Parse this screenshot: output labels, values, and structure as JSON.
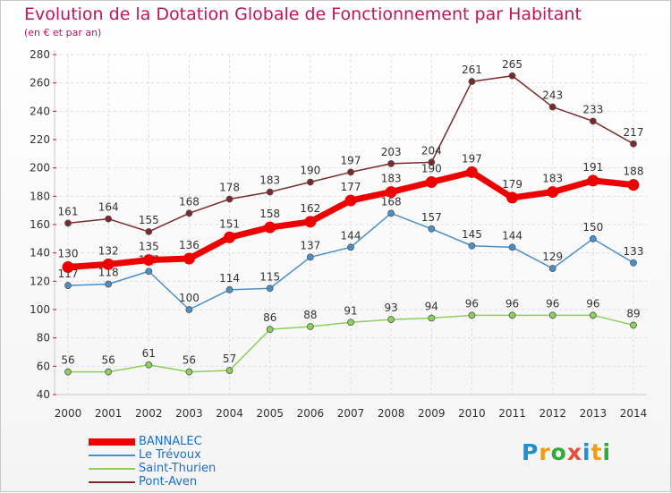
{
  "title": "Evolution de la Dotation Globale de Fonctionnement par Habitant",
  "subtitle": "(en € et par an)",
  "logo": "Proxiti",
  "chart_data": {
    "type": "line",
    "x": [
      2000,
      2001,
      2002,
      2003,
      2004,
      2005,
      2006,
      2007,
      2008,
      2009,
      2010,
      2011,
      2012,
      2013,
      2014
    ],
    "ylim": [
      40,
      280
    ],
    "yticks": [
      40,
      60,
      80,
      100,
      120,
      140,
      160,
      180,
      200,
      220,
      240,
      260,
      280
    ],
    "grid": true,
    "series": [
      {
        "name": "Pont-Aven",
        "color": "#7a2a2a",
        "values": [
          161,
          164,
          155,
          168,
          178,
          183,
          190,
          197,
          203,
          204,
          261,
          265,
          243,
          233,
          217
        ]
      },
      {
        "name": "Le Trévoux",
        "color": "#4a90c8",
        "values": [
          117,
          118,
          127,
          100,
          114,
          115,
          137,
          144,
          168,
          157,
          145,
          144,
          129,
          150,
          133
        ]
      },
      {
        "name": "Saint-Thurien",
        "color": "#8ccf5a",
        "values": [
          56,
          56,
          61,
          56,
          57,
          86,
          88,
          91,
          93,
          94,
          96,
          96,
          96,
          96,
          89
        ]
      },
      {
        "name": "BANNALEC",
        "color": "#ee0000",
        "values": [
          130,
          132,
          135,
          136,
          151,
          158,
          162,
          177,
          183,
          190,
          197,
          179,
          183,
          191,
          188
        ]
      }
    ],
    "legend": [
      "BANNALEC",
      "Le Trévoux",
      "Saint-Thurien",
      "Pont-Aven"
    ]
  }
}
